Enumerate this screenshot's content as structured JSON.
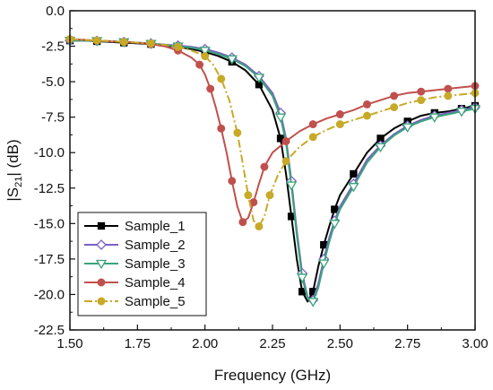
{
  "chart_data": {
    "type": "line",
    "title": "",
    "xlabel": "Frequency (GHz)",
    "ylabel_main": "|S",
    "ylabel_sub": "21",
    "ylabel_tail": "| (dB)",
    "xlim": [
      1.5,
      3.0
    ],
    "ylim": [
      -22.5,
      0.0
    ],
    "x_ticks": [
      1.5,
      1.75,
      2.0,
      2.25,
      2.5,
      2.75,
      3.0
    ],
    "x_tick_labels": [
      "1.50",
      "1.75",
      "2.00",
      "2.25",
      "2.50",
      "2.75",
      "3.00"
    ],
    "y_ticks": [
      0.0,
      -2.5,
      -5.0,
      -7.5,
      -10.0,
      -12.5,
      -15.0,
      -17.5,
      -20.0,
      -22.5
    ],
    "y_tick_labels": [
      "0.0",
      "-2.5",
      "-5.0",
      "-7.5",
      "-10.0",
      "-12.5",
      "-15.0",
      "-17.5",
      "-20.0",
      "-22.5"
    ],
    "grid": false,
    "legend_position": "bottom-left",
    "series": [
      {
        "name": "Sample_1",
        "color": "#000000",
        "marker": "square",
        "dash": "solid",
        "x": [
          1.5,
          1.55,
          1.6,
          1.65,
          1.7,
          1.75,
          1.8,
          1.85,
          1.9,
          1.95,
          2.0,
          2.05,
          2.1,
          2.15,
          2.2,
          2.25,
          2.28,
          2.3,
          2.32,
          2.34,
          2.36,
          2.38,
          2.4,
          2.42,
          2.44,
          2.46,
          2.48,
          2.5,
          2.55,
          2.6,
          2.65,
          2.7,
          2.75,
          2.8,
          2.85,
          2.9,
          2.95,
          3.0
        ],
        "y": [
          -2.1,
          -2.1,
          -2.15,
          -2.2,
          -2.25,
          -2.3,
          -2.35,
          -2.45,
          -2.55,
          -2.7,
          -2.9,
          -3.2,
          -3.6,
          -4.2,
          -5.2,
          -7.0,
          -9.0,
          -11.5,
          -14.5,
          -17.5,
          -19.8,
          -20.5,
          -19.8,
          -18.0,
          -16.5,
          -15.2,
          -14.0,
          -13.0,
          -11.5,
          -10.0,
          -9.0,
          -8.3,
          -7.8,
          -7.4,
          -7.2,
          -7.1,
          -6.9,
          -6.7
        ]
      },
      {
        "name": "Sample_2",
        "color": "#7b61c4",
        "marker": "diamond",
        "dash": "solid",
        "x": [
          1.5,
          1.55,
          1.6,
          1.65,
          1.7,
          1.75,
          1.8,
          1.85,
          1.9,
          1.95,
          2.0,
          2.05,
          2.1,
          2.15,
          2.2,
          2.25,
          2.28,
          2.3,
          2.32,
          2.34,
          2.36,
          2.38,
          2.4,
          2.42,
          2.44,
          2.46,
          2.48,
          2.5,
          2.55,
          2.6,
          2.65,
          2.7,
          2.75,
          2.8,
          2.85,
          2.9,
          2.95,
          3.0
        ],
        "y": [
          -2.1,
          -2.1,
          -2.12,
          -2.15,
          -2.2,
          -2.25,
          -2.3,
          -2.38,
          -2.45,
          -2.55,
          -2.7,
          -2.95,
          -3.3,
          -3.8,
          -4.6,
          -5.8,
          -7.2,
          -9.0,
          -12.0,
          -15.5,
          -18.5,
          -20.2,
          -20.4,
          -19.2,
          -17.5,
          -16.0,
          -14.8,
          -13.8,
          -12.2,
          -10.5,
          -9.5,
          -8.7,
          -8.1,
          -7.7,
          -7.4,
          -7.2,
          -7.0,
          -6.8
        ]
      },
      {
        "name": "Sample_3",
        "color": "#3aa37a",
        "marker": "triangle-down",
        "dash": "solid",
        "x": [
          1.5,
          1.55,
          1.6,
          1.65,
          1.7,
          1.75,
          1.8,
          1.85,
          1.9,
          1.95,
          2.0,
          2.05,
          2.1,
          2.15,
          2.2,
          2.25,
          2.28,
          2.3,
          2.32,
          2.34,
          2.36,
          2.38,
          2.4,
          2.42,
          2.44,
          2.46,
          2.48,
          2.5,
          2.55,
          2.6,
          2.65,
          2.7,
          2.75,
          2.8,
          2.85,
          2.9,
          2.95,
          3.0
        ],
        "y": [
          -2.1,
          -2.1,
          -2.12,
          -2.15,
          -2.2,
          -2.25,
          -2.32,
          -2.4,
          -2.5,
          -2.6,
          -2.8,
          -3.05,
          -3.4,
          -3.9,
          -4.7,
          -6.0,
          -7.5,
          -9.3,
          -12.3,
          -15.8,
          -18.8,
          -20.3,
          -20.5,
          -19.5,
          -17.8,
          -16.3,
          -15.0,
          -14.0,
          -12.4,
          -10.7,
          -9.6,
          -8.8,
          -8.2,
          -7.8,
          -7.5,
          -7.3,
          -7.1,
          -6.9
        ]
      },
      {
        "name": "Sample_4",
        "color": "#c0504d",
        "marker": "circle",
        "dash": "solid",
        "x": [
          1.5,
          1.55,
          1.6,
          1.65,
          1.7,
          1.75,
          1.8,
          1.85,
          1.9,
          1.95,
          1.98,
          2.0,
          2.02,
          2.04,
          2.06,
          2.08,
          2.1,
          2.12,
          2.14,
          2.16,
          2.18,
          2.2,
          2.22,
          2.25,
          2.3,
          2.35,
          2.4,
          2.45,
          2.5,
          2.55,
          2.6,
          2.65,
          2.7,
          2.75,
          2.8,
          2.85,
          2.9,
          2.95,
          3.0
        ],
        "y": [
          -2.0,
          -2.05,
          -2.1,
          -2.15,
          -2.2,
          -2.25,
          -2.35,
          -2.5,
          -2.8,
          -3.3,
          -3.8,
          -4.5,
          -5.5,
          -6.8,
          -8.3,
          -10.0,
          -12.0,
          -13.8,
          -14.9,
          -14.6,
          -13.5,
          -12.2,
          -11.0,
          -10.0,
          -9.2,
          -8.5,
          -8.0,
          -7.6,
          -7.3,
          -7.0,
          -6.6,
          -6.3,
          -6.0,
          -5.8,
          -5.7,
          -5.6,
          -5.5,
          -5.4,
          -5.3
        ]
      },
      {
        "name": "Sample_5",
        "color": "#c8a928",
        "marker": "circle",
        "dash": "dashdot",
        "x": [
          1.5,
          1.55,
          1.6,
          1.65,
          1.7,
          1.75,
          1.8,
          1.85,
          1.9,
          1.95,
          2.0,
          2.03,
          2.06,
          2.09,
          2.12,
          2.14,
          2.16,
          2.18,
          2.2,
          2.22,
          2.24,
          2.27,
          2.3,
          2.35,
          2.4,
          2.45,
          2.5,
          2.55,
          2.6,
          2.65,
          2.7,
          2.75,
          2.8,
          2.85,
          2.9,
          2.95,
          3.0
        ],
        "y": [
          -2.0,
          -2.05,
          -2.1,
          -2.15,
          -2.2,
          -2.25,
          -2.3,
          -2.4,
          -2.55,
          -2.8,
          -3.2,
          -3.8,
          -4.8,
          -6.3,
          -8.6,
          -10.8,
          -13.0,
          -14.8,
          -15.2,
          -14.5,
          -13.0,
          -11.6,
          -10.6,
          -9.6,
          -8.9,
          -8.4,
          -8.0,
          -7.7,
          -7.4,
          -7.1,
          -6.8,
          -6.5,
          -6.3,
          -6.1,
          -6.0,
          -5.9,
          -5.8
        ]
      }
    ]
  }
}
